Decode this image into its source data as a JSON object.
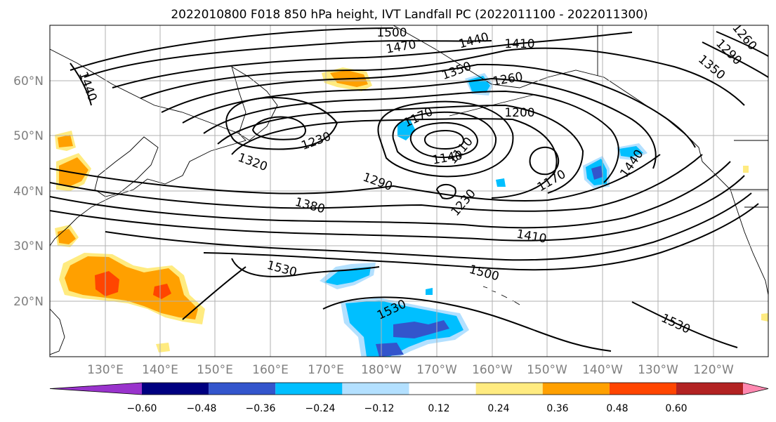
{
  "title": "2022010800 F018 850 hPa height, IVT Landfall PC (2022011100 - 2022011300)",
  "lon_labels": [
    "130°E",
    "140°E",
    "150°E",
    "160°E",
    "170°E",
    "180°W",
    "170°W",
    "160°W",
    "150°W",
    "140°W",
    "130°W",
    "120°W"
  ],
  "lat_labels": [
    "60°N",
    "50°N",
    "40°N",
    "30°N",
    "20°N"
  ],
  "colorbar": {
    "colors": [
      "#9933cc",
      "#000080",
      "#3355cc",
      "#00bfff",
      "#b3e0ff",
      "#ffffff",
      "#ffeb80",
      "#ffa000",
      "#ff4500",
      "#b22222",
      "#ff88b0"
    ],
    "ticks": [
      "−0.60",
      "−0.48",
      "−0.36",
      "−0.24",
      "−0.12",
      "0.12",
      "0.24",
      "0.36",
      "0.48",
      "0.60"
    ]
  },
  "contour_labels": [
    "1500",
    "1470",
    "1440",
    "1410",
    "1350",
    "1260",
    "1200",
    "1440",
    "1230",
    "1320",
    "1170",
    "1140",
    "1110",
    "1290",
    "1230",
    "1170",
    "1380",
    "1440",
    "1410",
    "1530",
    "1500",
    "1530",
    "1530",
    "1260",
    "1290",
    "1350"
  ]
}
